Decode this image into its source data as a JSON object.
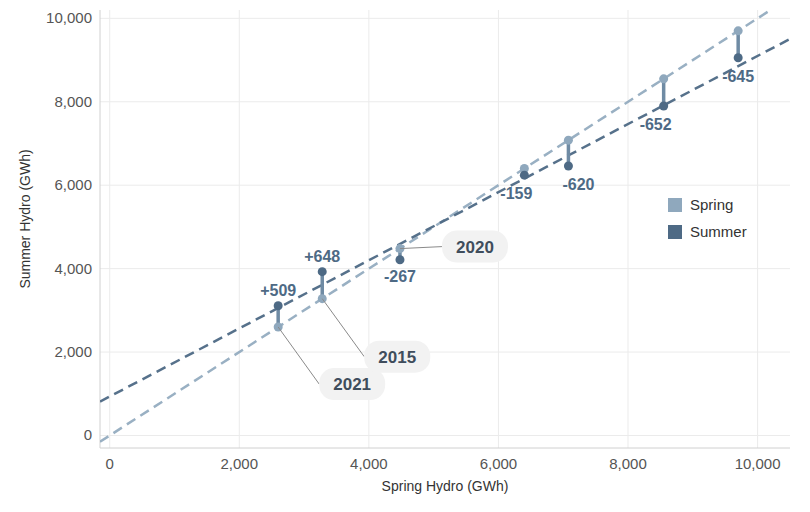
{
  "chart_data": {
    "type": "scatter",
    "x_label": "Spring Hydro (GWh)",
    "y_label": "Summer Hydro (GWh)",
    "x": [
      2600,
      3280,
      4480,
      6400,
      7080,
      8550,
      9700
    ],
    "series": [
      {
        "name": "Spring",
        "color": "#8fa8bd",
        "values": [
          2600,
          3280,
          4480,
          6400,
          7080,
          8550,
          9700
        ]
      },
      {
        "name": "Summer",
        "color": "#4e6a85",
        "values": [
          3109,
          3928,
          4213,
          6241,
          6460,
          7898,
          9055
        ]
      }
    ],
    "differences": [
      {
        "value": 509,
        "label": "+509"
      },
      {
        "value": 648,
        "label": "+648"
      },
      {
        "value": -267,
        "label": "-267"
      },
      {
        "value": -159,
        "label": "-159"
      },
      {
        "value": -620,
        "label": "-620"
      },
      {
        "value": -652,
        "label": "-652"
      },
      {
        "value": -645,
        "label": "-645"
      }
    ],
    "point_labels": [
      "2021",
      "2015",
      "2020",
      null,
      null,
      null,
      null
    ],
    "xlim": [
      -150,
      10500
    ],
    "ylim": [
      -300,
      10200
    ],
    "xticks": [
      0,
      {
        "value": 2000,
        "label": "2,000"
      },
      {
        "value": 4000,
        "label": "4,000"
      },
      {
        "value": 6000,
        "label": "6,000"
      },
      {
        "value": 8000,
        "label": "8,000"
      },
      {
        "value": 10000,
        "label": "10,000"
      }
    ],
    "yticks": [
      0,
      {
        "value": 2000,
        "label": "2,000"
      },
      {
        "value": 4000,
        "label": "4,000"
      },
      {
        "value": 6000,
        "label": "6,000"
      },
      {
        "value": 8000,
        "label": "8,000"
      },
      {
        "value": 10000,
        "label": "10,000"
      }
    ],
    "grid": true,
    "legend": "right",
    "marker": "circle",
    "line_style": "dashed"
  }
}
